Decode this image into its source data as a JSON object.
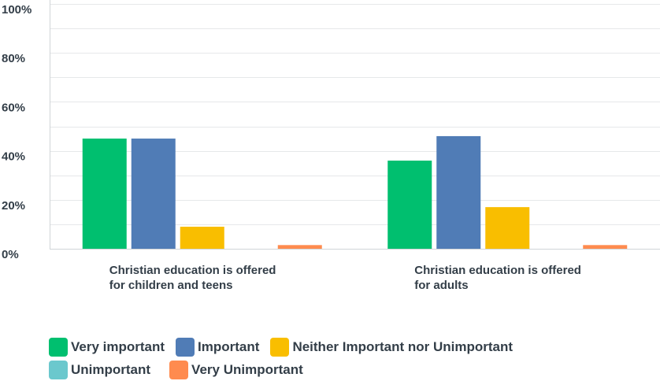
{
  "chart_data": {
    "type": "bar",
    "categories": [
      [
        "Christian education is offered",
        "for children and teens"
      ],
      [
        "Christian education is offered",
        "for adults"
      ]
    ],
    "series": [
      {
        "name": "Very important",
        "color": "#00bf6f",
        "values": [
          45,
          36
        ]
      },
      {
        "name": "Important",
        "color": "#507cb6",
        "values": [
          45,
          46
        ]
      },
      {
        "name": "Neither Important nor Unimportant",
        "color": "#f9be00",
        "values": [
          9,
          17
        ]
      },
      {
        "name": "Unimportant",
        "color": "#6bc8cd",
        "values": [
          0,
          0
        ]
      },
      {
        "name": "Very Unimportant",
        "color": "#ff8b4f",
        "values": [
          1.5,
          1.5
        ]
      }
    ],
    "yticks": [
      "0%",
      "20%",
      "40%",
      "60%",
      "80%",
      "100%"
    ],
    "ylim": [
      0,
      100
    ],
    "grid": true,
    "legend_position": "bottom-left"
  }
}
